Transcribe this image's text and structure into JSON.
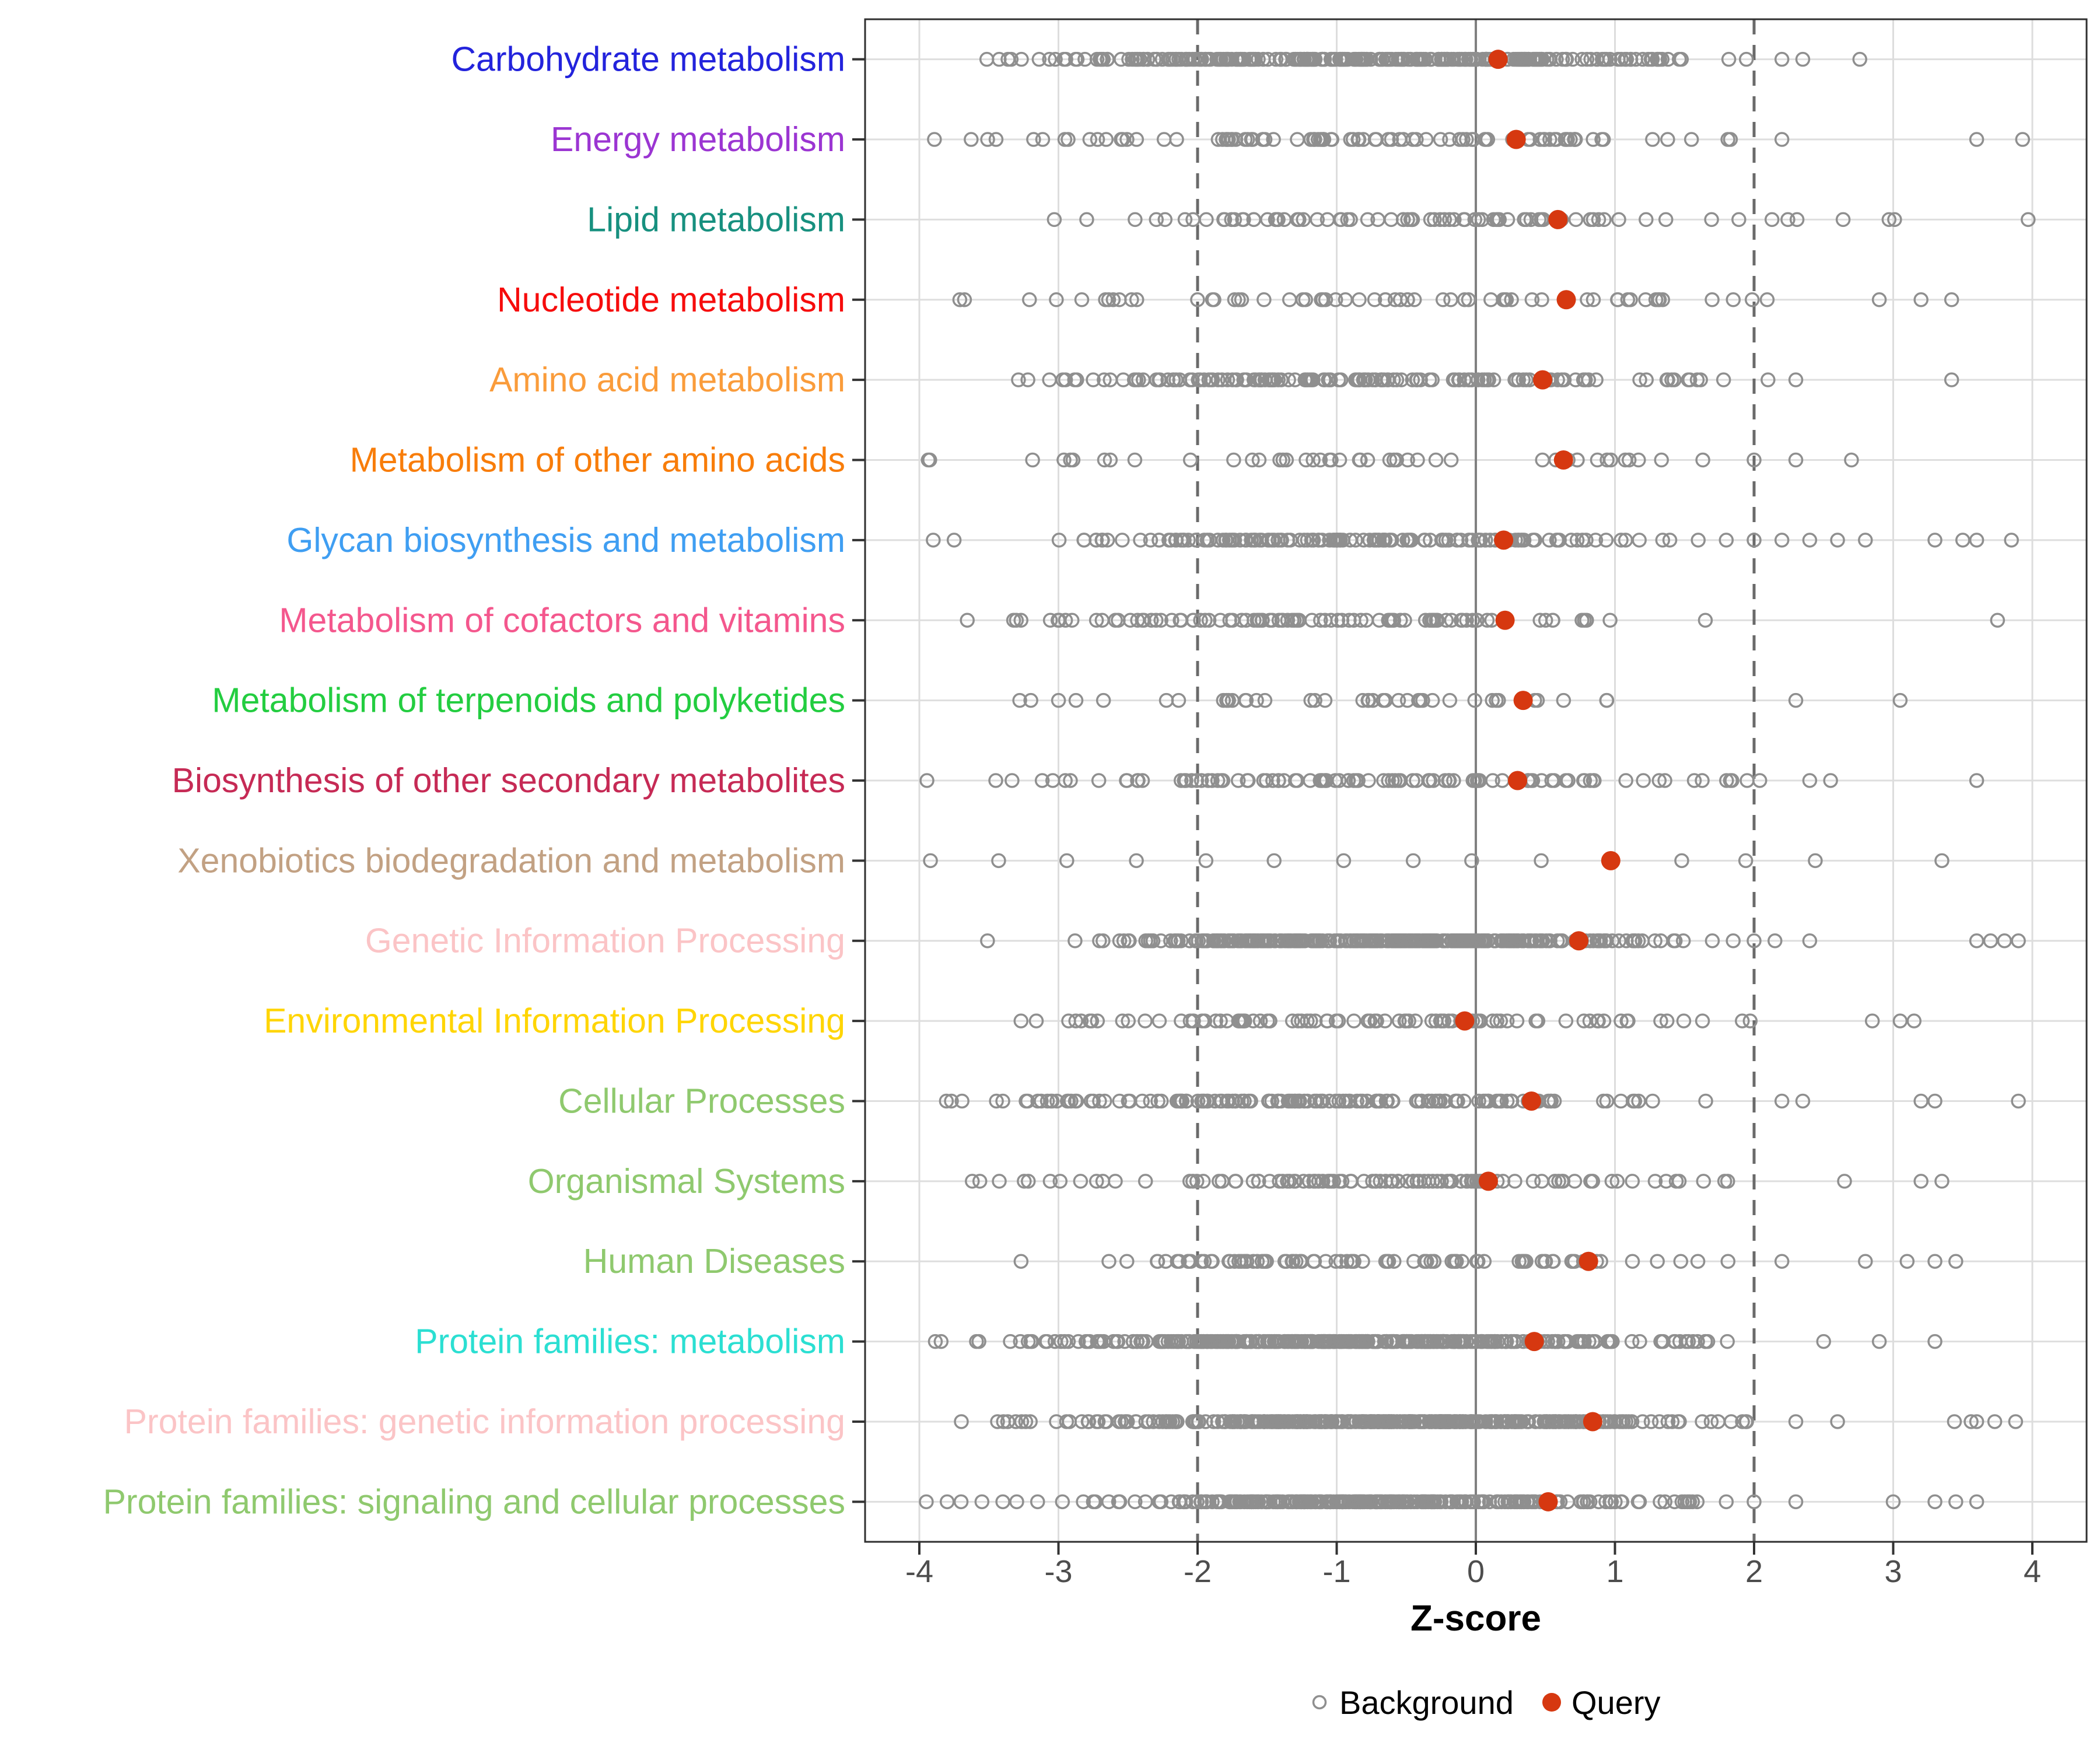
{
  "page": {
    "background": "#FFFFFF"
  },
  "chart_data": {
    "type": "scatter",
    "subtype": "strip-plot",
    "title": "",
    "xlabel": "Z-score",
    "ylabel": "",
    "xlim": [
      -4.39,
      4.39
    ],
    "grid": "major-gray-on-white",
    "x_ticks": [
      {
        "value": -4,
        "label": "-4"
      },
      {
        "value": -3,
        "label": "-3"
      },
      {
        "value": -2,
        "label": "-2"
      },
      {
        "value": -1,
        "label": "-1"
      },
      {
        "value": 0,
        "label": "0"
      },
      {
        "value": 1,
        "label": "1"
      },
      {
        "value": 2,
        "label": "2"
      },
      {
        "value": 3,
        "label": "3"
      },
      {
        "value": 4,
        "label": "4"
      }
    ],
    "reference_lines": {
      "solid_at": 0,
      "dashed_at": [
        -2,
        2
      ]
    },
    "legend": {
      "position": "bottom-center",
      "background_label": "Background",
      "query_label": "Query"
    },
    "style": {
      "background_point_stroke": "#8F8F8F",
      "query_point_fill": "#D63810",
      "grid_color": "#DDDDDD",
      "row_line_color": "#DEDEDE",
      "zero_line_color": "#808080",
      "dashed_line_color": "#6A6A6A",
      "panel_border_color": "#2F2F2F",
      "tick_color": "#333333",
      "tick_label_color": "#4D4D4D"
    },
    "categories": [
      {
        "label": "Carbohydrate metabolism",
        "color": "#2323DC",
        "query": 0.16,
        "background": {
          "n": 300,
          "mean": -0.7,
          "sd": 1.15,
          "min": -3.95,
          "max": 2.05,
          "extra": [
            2.2,
            2.35,
            2.76
          ],
          "seed": 101
        }
      },
      {
        "label": "Energy metabolism",
        "color": "#9B35D2",
        "query": 0.29,
        "background": {
          "n": 95,
          "mean": -0.5,
          "sd": 1.5,
          "min": -3.95,
          "max": 2.0,
          "extra": [
            2.2,
            3.6,
            3.93
          ],
          "seed": 202
        }
      },
      {
        "label": "Lipid metabolism",
        "color": "#17907F",
        "query": 0.59,
        "background": {
          "n": 78,
          "mean": -0.2,
          "sd": 1.55,
          "min": -3.5,
          "max": 2.35,
          "extra": [
            2.64,
            2.97,
            3.01,
            3.97
          ],
          "seed": 303
        }
      },
      {
        "label": "Nucleotide metabolism",
        "color": "#F60C0C",
        "query": 0.65,
        "background": {
          "n": 62,
          "mean": -0.5,
          "sd": 1.6,
          "min": -3.75,
          "max": 2.3,
          "extra": [
            2.9,
            3.2,
            3.42
          ],
          "seed": 404
        }
      },
      {
        "label": "Amino acid metabolism",
        "color": "#FA9C3B",
        "query": 0.48,
        "background": {
          "n": 150,
          "mean": -0.9,
          "sd": 1.3,
          "min": -3.85,
          "max": 1.9,
          "extra": [
            2.1,
            2.3,
            3.42
          ],
          "seed": 505
        }
      },
      {
        "label": "Metabolism of other amino acids",
        "color": "#F87D0A",
        "query": 0.63,
        "background": {
          "n": 46,
          "mean": -1.0,
          "sd": 1.7,
          "min": -3.95,
          "max": 1.8,
          "extra": [
            2.0,
            2.3,
            2.7
          ],
          "seed": 606
        }
      },
      {
        "label": "Glycan biosynthesis and metabolism",
        "color": "#3F9EF2",
        "query": 0.2,
        "background": {
          "n": 150,
          "mean": -0.8,
          "sd": 1.1,
          "min": -3.15,
          "max": 1.6,
          "extra": [
            -3.9,
            -3.75,
            1.8,
            2.0,
            2.2,
            2.4,
            2.6,
            2.8,
            3.3,
            3.5,
            3.6,
            3.85
          ],
          "seed": 707
        }
      },
      {
        "label": "Metabolism of cofactors and vitamins",
        "color": "#F4578D",
        "query": 0.21,
        "background": {
          "n": 92,
          "mean": -1.0,
          "sd": 1.3,
          "min": -3.95,
          "max": 1.7,
          "extra": [
            3.75
          ],
          "seed": 808
        }
      },
      {
        "label": "Metabolism of terpenoids and polyketides",
        "color": "#23CD40",
        "query": 0.34,
        "background": {
          "n": 40,
          "mean": -1.0,
          "sd": 1.5,
          "min": -3.45,
          "max": 1.6,
          "extra": [
            2.3,
            3.05
          ],
          "seed": 909
        }
      },
      {
        "label": "Biosynthesis of other secondary metabolites",
        "color": "#C62A55",
        "query": 0.3,
        "background": {
          "n": 100,
          "mean": -0.8,
          "sd": 1.4,
          "min": -3.95,
          "max": 2.1,
          "extra": [
            2.4,
            2.55,
            3.6
          ],
          "seed": 1010
        }
      },
      {
        "label": "Xenobiotics biodegradation and metabolism",
        "color": "#C2A183",
        "query": 0.97,
        "background": {
          "values": [
            -3.92,
            -3.43,
            -2.94,
            -2.44,
            -1.94,
            -1.45,
            -0.95,
            -0.45,
            -0.03,
            0.47,
            1.48,
            1.94,
            2.44,
            3.35
          ]
        }
      },
      {
        "label": "Genetic Information Processing",
        "color": "#FBC4C6",
        "query": 0.74,
        "background": {
          "n": 320,
          "mean": -0.6,
          "sd": 0.95,
          "min": -3.15,
          "max": 1.55,
          "extra": [
            -3.51,
            1.7,
            1.85,
            2.0,
            2.15,
            2.4,
            3.6,
            3.7,
            3.8,
            3.9
          ],
          "seed": 1212
        }
      },
      {
        "label": "Environmental Information Processing",
        "color": "#FFD503",
        "query": -0.08,
        "background": {
          "n": 90,
          "mean": -0.8,
          "sd": 1.35,
          "min": -3.85,
          "max": 2.2,
          "extra": [
            2.85,
            3.05,
            3.15
          ],
          "seed": 1313
        }
      },
      {
        "label": "Cellular Processes",
        "color": "#8FC96E",
        "query": 0.4,
        "background": {
          "n": 150,
          "mean": -1.1,
          "sd": 1.35,
          "min": -3.95,
          "max": 1.9,
          "extra": [
            2.2,
            2.35,
            3.2,
            3.3,
            3.9
          ],
          "seed": 1414
        }
      },
      {
        "label": "Organismal Systems",
        "color": "#8FC96E",
        "query": 0.09,
        "background": {
          "n": 105,
          "mean": -0.8,
          "sd": 1.35,
          "min": -3.85,
          "max": 2.1,
          "extra": [
            2.65,
            3.2,
            3.35
          ],
          "seed": 1515
        }
      },
      {
        "label": "Human Diseases",
        "color": "#8FC96E",
        "query": 0.81,
        "background": {
          "n": 92,
          "mean": -0.7,
          "sd": 1.35,
          "min": -3.6,
          "max": 1.95,
          "extra": [
            2.2,
            2.8,
            3.1,
            3.3,
            3.45
          ],
          "seed": 1616
        }
      },
      {
        "label": "Protein families: metabolism",
        "color": "#2BDFD2",
        "query": 0.42,
        "background": {
          "n": 330,
          "mean": -0.9,
          "sd": 1.15,
          "min": -3.92,
          "max": 2.1,
          "extra": [
            2.5,
            2.9,
            3.3
          ],
          "seed": 1717
        }
      },
      {
        "label": "Protein families: genetic information processing",
        "color": "#FBC4C6",
        "query": 0.84,
        "background": {
          "n": 400,
          "mean": -0.55,
          "sd": 1.0,
          "min": -3.9,
          "max": 2.1,
          "extra": [
            2.3,
            2.6,
            3.44,
            3.56,
            3.6,
            3.73,
            3.88
          ],
          "seed": 1818
        }
      },
      {
        "label": "Protein families: signaling and cellular processes",
        "color": "#8FC96E",
        "query": 0.52,
        "background": {
          "n": 300,
          "mean": -0.6,
          "sd": 0.95,
          "min": -3.0,
          "max": 1.6,
          "extra": [
            -3.95,
            -3.8,
            -3.7,
            -3.55,
            -3.4,
            -3.3,
            -3.15,
            1.8,
            2.0,
            2.3,
            3.0,
            3.3,
            3.45,
            3.6
          ],
          "seed": 1919
        }
      }
    ]
  }
}
